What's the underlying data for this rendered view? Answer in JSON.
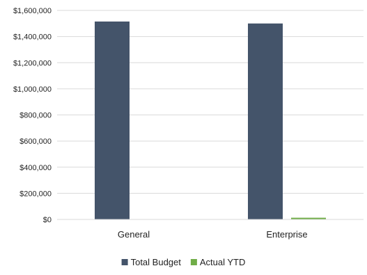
{
  "chart_data": {
    "type": "bar",
    "title": "",
    "xlabel": "",
    "ylabel": "",
    "categories": [
      "General",
      "Enterprise"
    ],
    "series": [
      {
        "name": "Total Budget",
        "color": "#44546a",
        "values": [
          1515000,
          1500000
        ]
      },
      {
        "name": "Actual YTD",
        "color": "#70ad47",
        "values": [
          0,
          13000
        ]
      }
    ],
    "ylim": [
      0,
      1600000
    ],
    "yticks": [
      0,
      200000,
      400000,
      600000,
      800000,
      1000000,
      1200000,
      1400000,
      1600000
    ],
    "ytick_labels": [
      "$0",
      "$200,000",
      "$400,000",
      "$600,000",
      "$800,000",
      "$1,000,000",
      "$1,200,000",
      "$1,400,000",
      "$1,600,000"
    ],
    "grid": true,
    "legend": "bottom-center"
  }
}
